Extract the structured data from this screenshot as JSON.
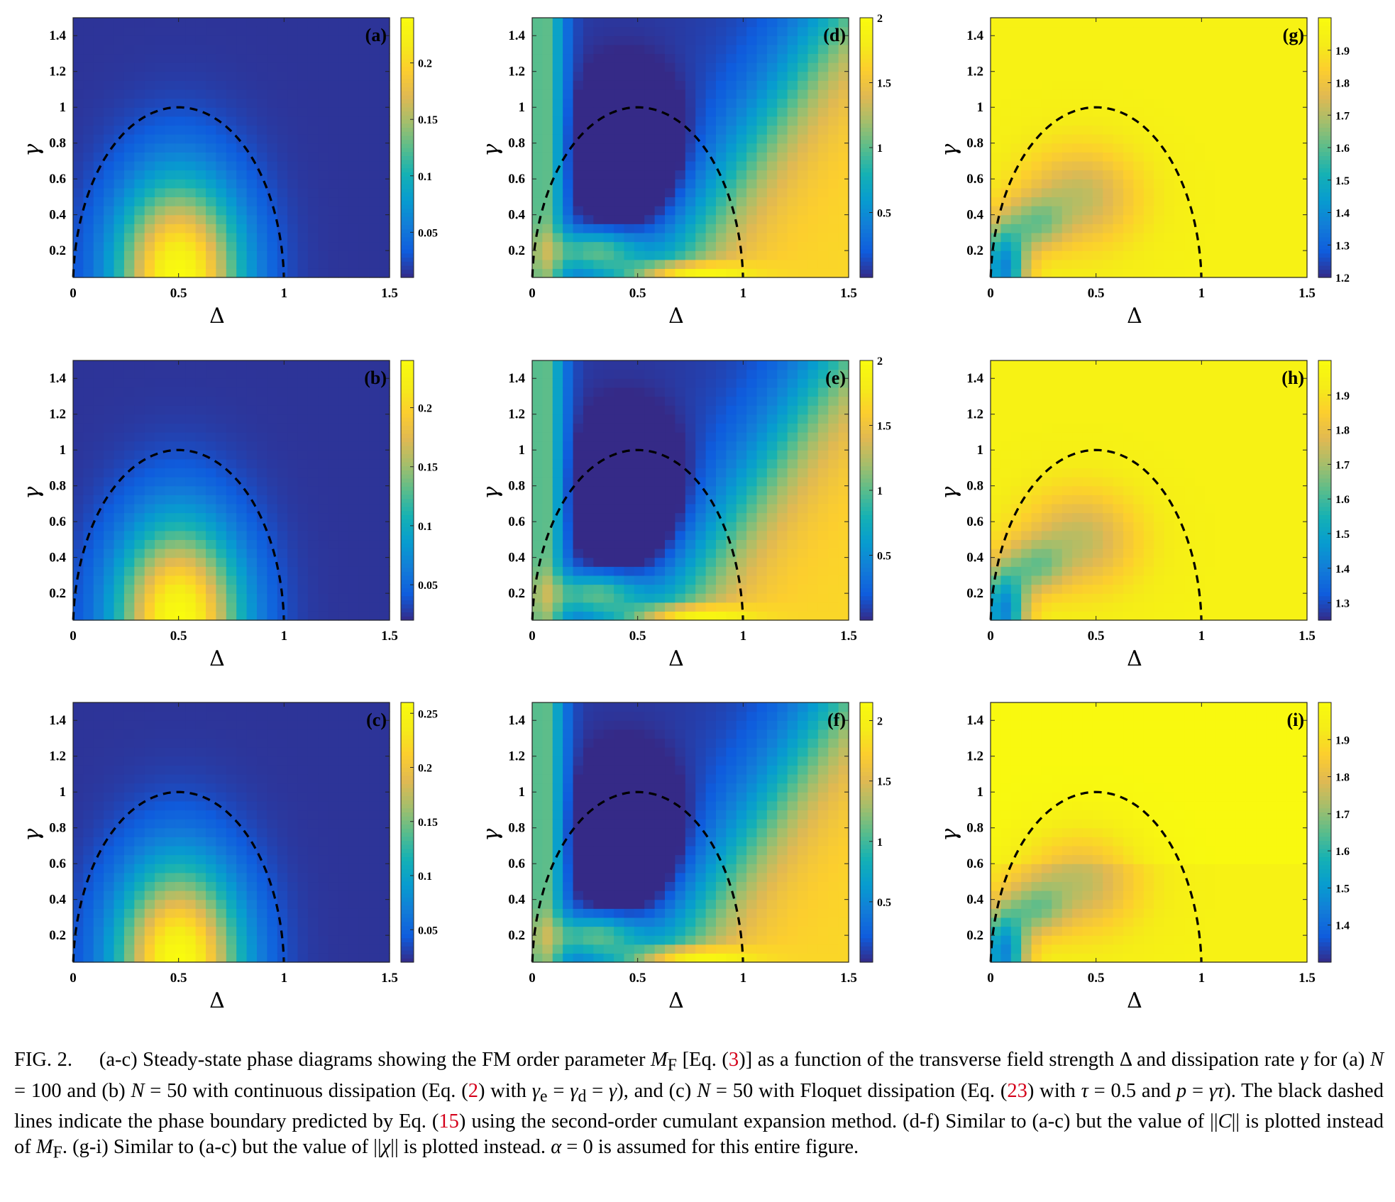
{
  "figure": {
    "caption": {
      "label": "FIG. 2.",
      "segments": [
        {
          "t": "(a-c) Steady-state phase diagrams showing the FM order parameter "
        },
        {
          "t": "M",
          "i": true
        },
        {
          "t": "F",
          "sub": true
        },
        {
          "t": " [Eq. ("
        },
        {
          "t": "3",
          "ref": true
        },
        {
          "t": ")] as a function of the transverse field strength Δ and dissipation rate "
        },
        {
          "t": "γ",
          "i": true
        },
        {
          "t": " for (a) "
        },
        {
          "t": "N",
          "i": true
        },
        {
          "t": " = 100 and (b) "
        },
        {
          "t": "N",
          "i": true
        },
        {
          "t": " = 50 with continuous dissipation (Eq. ("
        },
        {
          "t": "2",
          "ref": true
        },
        {
          "t": ") with "
        },
        {
          "t": "γ",
          "i": true
        },
        {
          "t": "e",
          "sub": true
        },
        {
          "t": " = "
        },
        {
          "t": "γ",
          "i": true
        },
        {
          "t": "d",
          "sub": true
        },
        {
          "t": " = "
        },
        {
          "t": "γ",
          "i": true
        },
        {
          "t": "), and (c) "
        },
        {
          "t": "N",
          "i": true
        },
        {
          "t": " = 50 with Floquet dissipation (Eq. ("
        },
        {
          "t": "23",
          "ref": true
        },
        {
          "t": ") with "
        },
        {
          "t": "τ",
          "i": true
        },
        {
          "t": " = 0.5 and "
        },
        {
          "t": "p",
          "i": true
        },
        {
          "t": " = "
        },
        {
          "t": "γτ",
          "i": true
        },
        {
          "t": "). The black dashed lines indicate the phase boundary predicted by Eq. ("
        },
        {
          "t": "15",
          "ref": true
        },
        {
          "t": ") using the second-order cumulant expansion method. (d-f) Similar to (a-c) but the value of ||"
        },
        {
          "t": "C",
          "i": true
        },
        {
          "t": "|| is plotted instead of "
        },
        {
          "t": "M",
          "i": true
        },
        {
          "t": "F",
          "sub": true
        },
        {
          "t": ". (g-i) Similar to (a-c) but the value of ||"
        },
        {
          "t": "χ",
          "i": true
        },
        {
          "t": "|| is plotted instead. "
        },
        {
          "t": "α",
          "i": true
        },
        {
          "t": " = 0 is assumed for this entire figure."
        }
      ]
    }
  },
  "chart_data": [
    {
      "type": "heatmap",
      "label": "(a)",
      "quantity": "M_F",
      "model": "mf",
      "params": {
        "N": 100,
        "dissipation": "continuous"
      },
      "xlabel": "Δ",
      "ylabel": "γ",
      "xlim": [
        0,
        1.5
      ],
      "ylim": [
        0.05,
        1.5
      ],
      "xticks": [
        "0",
        "0.5",
        "1",
        "1.5"
      ],
      "yticks": [
        "0.2",
        "0.4",
        "0.6",
        "0.8",
        "1",
        "1.2",
        "1.4"
      ],
      "clim": [
        0.01,
        0.24
      ],
      "cticks": [
        "0.05",
        "0.1",
        "0.15",
        "0.2"
      ],
      "boundary": "Δ = 0.5 ± 0.5·sqrt(1−γ²)",
      "peak": {
        "x": 0.5,
        "y": 0.05,
        "value": 0.24
      }
    },
    {
      "type": "heatmap",
      "label": "(b)",
      "quantity": "M_F",
      "model": "mf",
      "params": {
        "N": 50,
        "dissipation": "continuous"
      },
      "xlabel": "Δ",
      "ylabel": "γ",
      "xlim": [
        0,
        1.5
      ],
      "ylim": [
        0.05,
        1.5
      ],
      "xticks": [
        "0",
        "0.5",
        "1",
        "1.5"
      ],
      "yticks": [
        "0.2",
        "0.4",
        "0.6",
        "0.8",
        "1",
        "1.2",
        "1.4"
      ],
      "clim": [
        0.02,
        0.24
      ],
      "cticks": [
        "0.05",
        "0.1",
        "0.15",
        "0.2"
      ],
      "boundary": "Δ = 0.5 ± 0.5·sqrt(1−γ²)",
      "peak": {
        "x": 0.5,
        "y": 0.05,
        "value": 0.23
      }
    },
    {
      "type": "heatmap",
      "label": "(c)",
      "quantity": "M_F",
      "model": "mf",
      "params": {
        "N": 50,
        "dissipation": "Floquet",
        "tau": 0.5
      },
      "xlabel": "Δ",
      "ylabel": "γ",
      "xlim": [
        0,
        1.5
      ],
      "ylim": [
        0.05,
        1.5
      ],
      "xticks": [
        "0",
        "0.5",
        "1",
        "1.5"
      ],
      "yticks": [
        "0.2",
        "0.4",
        "0.6",
        "0.8",
        "1",
        "1.2",
        "1.4"
      ],
      "clim": [
        0.02,
        0.26
      ],
      "cticks": [
        "0.05",
        "0.1",
        "0.15",
        "0.2",
        "0.25"
      ],
      "boundary": "Δ = 0.5 ± 0.5·sqrt(1−γ²)",
      "peak": {
        "x": 0.5,
        "y": 0.05,
        "value": 0.25
      }
    },
    {
      "type": "heatmap",
      "label": "(d)",
      "quantity": "||C||",
      "model": "c",
      "params": {
        "N": 100,
        "dissipation": "continuous"
      },
      "xlabel": "Δ",
      "ylabel": "γ",
      "xlim": [
        0,
        1.5
      ],
      "ylim": [
        0.05,
        1.5
      ],
      "xticks": [
        "0",
        "0.5",
        "1",
        "1.5"
      ],
      "yticks": [
        "0.2",
        "0.4",
        "0.6",
        "0.8",
        "1",
        "1.2",
        "1.4"
      ],
      "clim": [
        0.0,
        2.0
      ],
      "cticks": [
        "0.5",
        "1",
        "1.5",
        "2"
      ],
      "boundary": "Δ = 0.5 ± 0.5·sqrt(1−γ²)",
      "peak": {
        "x": 1.5,
        "y": 0.05,
        "value": 2.0
      }
    },
    {
      "type": "heatmap",
      "label": "(e)",
      "quantity": "||C||",
      "model": "c",
      "params": {
        "N": 50,
        "dissipation": "continuous"
      },
      "xlabel": "Δ",
      "ylabel": "γ",
      "xlim": [
        0,
        1.5
      ],
      "ylim": [
        0.05,
        1.5
      ],
      "xticks": [
        "0",
        "0.5",
        "1",
        "1.5"
      ],
      "yticks": [
        "0.2",
        "0.4",
        "0.6",
        "0.8",
        "1",
        "1.2",
        "1.4"
      ],
      "clim": [
        0.0,
        2.0
      ],
      "cticks": [
        "0.5",
        "1",
        "1.5",
        "2"
      ],
      "boundary": "Δ = 0.5 ± 0.5·sqrt(1−γ²)",
      "peak": {
        "x": 1.5,
        "y": 0.05,
        "value": 2.0
      }
    },
    {
      "type": "heatmap",
      "label": "(f)",
      "quantity": "||C||",
      "model": "c",
      "params": {
        "N": 50,
        "dissipation": "Floquet",
        "tau": 0.5
      },
      "xlabel": "Δ",
      "ylabel": "γ",
      "xlim": [
        0,
        1.5
      ],
      "ylim": [
        0.05,
        1.5
      ],
      "xticks": [
        "0",
        "0.5",
        "1",
        "1.5"
      ],
      "yticks": [
        "0.2",
        "0.4",
        "0.6",
        "0.8",
        "1",
        "1.2",
        "1.4"
      ],
      "clim": [
        0.0,
        2.15
      ],
      "cticks": [
        "0.5",
        "1",
        "1.5",
        "2"
      ],
      "boundary": "Δ = 0.5 ± 0.5·sqrt(1−γ²)",
      "peak": {
        "x": 1.5,
        "y": 0.05,
        "value": 2.1
      }
    },
    {
      "type": "heatmap",
      "label": "(g)",
      "quantity": "||χ||",
      "model": "chi",
      "params": {
        "N": 100,
        "dissipation": "continuous"
      },
      "xlabel": "Δ",
      "ylabel": "γ",
      "xlim": [
        0,
        1.5
      ],
      "ylim": [
        0.05,
        1.5
      ],
      "xticks": [
        "0",
        "0.5",
        "1",
        "1.5"
      ],
      "yticks": [
        "0.2",
        "0.4",
        "0.6",
        "0.8",
        "1",
        "1.2",
        "1.4"
      ],
      "clim": [
        1.2,
        2.0
      ],
      "cticks": [
        "1.2",
        "1.3",
        "1.4",
        "1.5",
        "1.6",
        "1.7",
        "1.8",
        "1.9"
      ],
      "boundary": "Δ = 0.5 ± 0.5·sqrt(1−γ²)",
      "minimum": {
        "x": 0.05,
        "y": 0.1,
        "value": 1.2
      }
    },
    {
      "type": "heatmap",
      "label": "(h)",
      "quantity": "||χ||",
      "model": "chi",
      "params": {
        "N": 50,
        "dissipation": "continuous"
      },
      "xlabel": "Δ",
      "ylabel": "γ",
      "xlim": [
        0,
        1.5
      ],
      "ylim": [
        0.05,
        1.5
      ],
      "xticks": [
        "0",
        "0.5",
        "1",
        "1.5"
      ],
      "yticks": [
        "0.2",
        "0.4",
        "0.6",
        "0.8",
        "1",
        "1.2",
        "1.4"
      ],
      "clim": [
        1.25,
        2.0
      ],
      "cticks": [
        "1.3",
        "1.4",
        "1.5",
        "1.6",
        "1.7",
        "1.8",
        "1.9"
      ],
      "boundary": "Δ = 0.5 ± 0.5·sqrt(1−γ²)",
      "minimum": {
        "x": 0.05,
        "y": 0.1,
        "value": 1.27
      }
    },
    {
      "type": "heatmap",
      "label": "(i)",
      "quantity": "||χ||",
      "model": "chi2",
      "params": {
        "N": 50,
        "dissipation": "Floquet",
        "tau": 0.5
      },
      "xlabel": "Δ",
      "ylabel": "γ",
      "xlim": [
        0,
        1.5
      ],
      "ylim": [
        0.05,
        1.5
      ],
      "xticks": [
        "0",
        "0.5",
        "1",
        "1.5"
      ],
      "yticks": [
        "0.2",
        "0.4",
        "0.6",
        "0.8",
        "1",
        "1.2",
        "1.4"
      ],
      "clim": [
        1.3,
        2.0
      ],
      "cticks": [
        "1.4",
        "1.5",
        "1.6",
        "1.7",
        "1.8",
        "1.9"
      ],
      "boundary": "Δ = 0.5 ± 0.5·sqrt(1−γ²)",
      "minimum": {
        "x": 0.05,
        "y": 0.1,
        "value": 1.32
      }
    }
  ]
}
